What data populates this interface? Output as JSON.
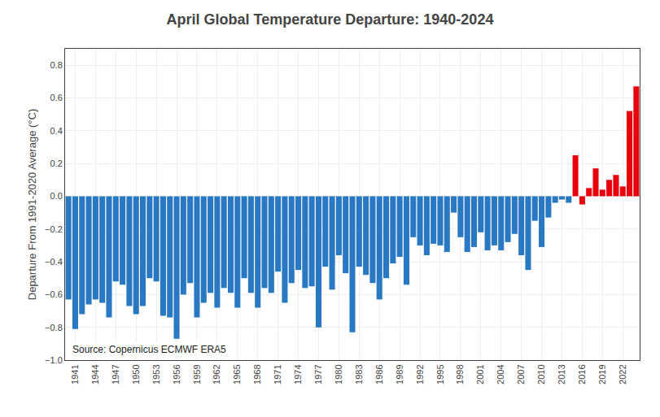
{
  "chart_data": {
    "type": "bar",
    "title": "April Global Temperature Departure: 1940-2024",
    "ylabel": "Departure From 1991-2020 Average (°C)",
    "annotations": [
      "Source: Copernicus ECMWF ERA5"
    ],
    "categories": [
      null,
      "1941",
      null,
      null,
      "1944",
      null,
      null,
      "1947",
      null,
      null,
      "1950",
      null,
      null,
      "1953",
      null,
      null,
      "1956",
      null,
      null,
      "1959",
      null,
      null,
      "1962",
      null,
      null,
      "1965",
      null,
      null,
      "1968",
      null,
      null,
      "1971",
      null,
      null,
      "1974",
      null,
      null,
      "1977",
      null,
      null,
      "1980",
      null,
      null,
      "1983",
      null,
      null,
      "1986",
      null,
      null,
      "1989",
      null,
      null,
      "1992",
      null,
      null,
      "1995",
      null,
      null,
      "1998",
      null,
      null,
      "2001",
      null,
      null,
      "2004",
      null,
      null,
      "2007",
      null,
      null,
      "2010",
      null,
      null,
      "2013",
      null,
      null,
      "2016",
      null,
      null,
      "2019",
      null,
      null,
      "2022",
      null,
      null
    ],
    "values": [
      -0.63,
      -0.81,
      -0.72,
      -0.66,
      -0.63,
      -0.65,
      -0.74,
      -0.52,
      -0.54,
      -0.67,
      -0.72,
      -0.67,
      -0.5,
      -0.52,
      -0.73,
      -0.74,
      -0.87,
      -0.6,
      -0.53,
      -0.74,
      -0.65,
      -0.59,
      -0.68,
      -0.56,
      -0.59,
      -0.68,
      -0.5,
      -0.59,
      -0.68,
      -0.56,
      -0.59,
      -0.46,
      -0.65,
      -0.53,
      -0.45,
      -0.56,
      -0.55,
      -0.8,
      -0.43,
      -0.57,
      -0.36,
      -0.47,
      -0.83,
      -0.43,
      -0.48,
      -0.53,
      -0.63,
      -0.5,
      -0.41,
      -0.37,
      -0.54,
      -0.25,
      -0.3,
      -0.36,
      -0.29,
      -0.3,
      -0.34,
      -0.1,
      -0.25,
      -0.34,
      -0.31,
      -0.22,
      -0.33,
      -0.3,
      -0.33,
      -0.28,
      -0.23,
      -0.36,
      -0.45,
      -0.15,
      -0.31,
      -0.13,
      -0.04,
      -0.02,
      -0.04,
      0.25,
      -0.05,
      0.05,
      0.17,
      0.04,
      0.1,
      0.13,
      0.06,
      0.52,
      0.67
    ],
    "colors": [
      "#2878c3",
      "#2878c3",
      "#2878c3",
      "#2878c3",
      "#2878c3",
      "#2878c3",
      "#2878c3",
      "#2878c3",
      "#2878c3",
      "#2878c3",
      "#2878c3",
      "#2878c3",
      "#2878c3",
      "#2878c3",
      "#2878c3",
      "#2878c3",
      "#2878c3",
      "#2878c3",
      "#2878c3",
      "#2878c3",
      "#2878c3",
      "#2878c3",
      "#2878c3",
      "#2878c3",
      "#2878c3",
      "#2878c3",
      "#2878c3",
      "#2878c3",
      "#2878c3",
      "#2878c3",
      "#2878c3",
      "#2878c3",
      "#2878c3",
      "#2878c3",
      "#2878c3",
      "#2878c3",
      "#2878c3",
      "#2878c3",
      "#2878c3",
      "#2878c3",
      "#2878c3",
      "#2878c3",
      "#2878c3",
      "#2878c3",
      "#2878c3",
      "#2878c3",
      "#2878c3",
      "#2878c3",
      "#2878c3",
      "#2878c3",
      "#2878c3",
      "#2878c3",
      "#2878c3",
      "#2878c3",
      "#2878c3",
      "#2878c3",
      "#2878c3",
      "#2878c3",
      "#2878c3",
      "#2878c3",
      "#2878c3",
      "#2878c3",
      "#2878c3",
      "#2878c3",
      "#2878c3",
      "#2878c3",
      "#2878c3",
      "#2878c3",
      "#2878c3",
      "#2878c3",
      "#2878c3",
      "#2878c3",
      "#2878c3",
      "#2878c3",
      "#2878c3",
      "#e8000d",
      "#e8000d",
      "#e8000d",
      "#e8000d",
      "#e8000d",
      "#e8000d",
      "#e8000d",
      "#e8000d",
      "#e8000d",
      "#e8000d"
    ],
    "ylim": [
      -1.0,
      0.9
    ],
    "yticks": [
      {
        "value": -1.0,
        "label": "−1.0"
      },
      {
        "value": -0.8,
        "label": "−0.8"
      },
      {
        "value": -0.6,
        "label": "−0.6"
      },
      {
        "value": -0.4,
        "label": "−0.4"
      },
      {
        "value": -0.2,
        "label": "−0.2"
      },
      {
        "value": 0.0,
        "label": "0.0"
      },
      0.2,
      0.4,
      0.6,
      0.8
    ],
    "grid": true
  }
}
